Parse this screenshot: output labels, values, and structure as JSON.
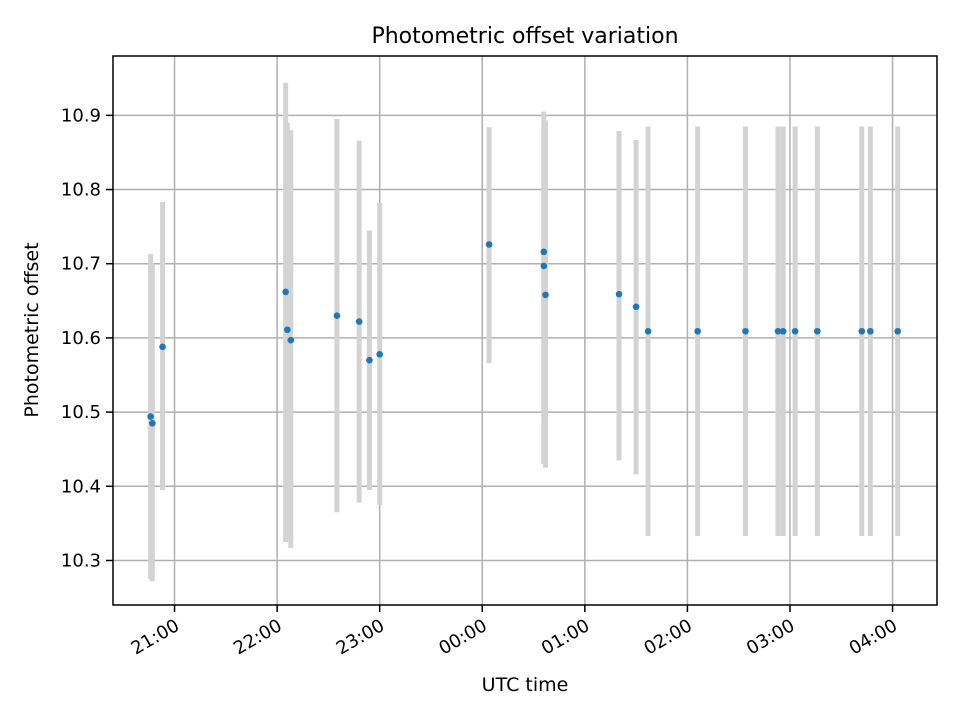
{
  "chart_data": {
    "type": "scatter",
    "title": "Photometric offset variation",
    "xlabel": "UTC time",
    "ylabel": "Photometric offset",
    "x_axis_kind": "time",
    "x_start": "20:24",
    "x_end": "04:26",
    "xlim": [
      "20:24",
      "04:26"
    ],
    "ylim": [
      10.24,
      10.98
    ],
    "x_ticks": [
      "21:00",
      "22:00",
      "23:00",
      "00:00",
      "01:00",
      "02:00",
      "03:00",
      "04:00"
    ],
    "y_ticks": [
      "10.3",
      "10.4",
      "10.5",
      "10.6",
      "10.7",
      "10.8",
      "10.9"
    ],
    "grid": true,
    "marker_color": "#1f77b4",
    "errorbar_color": "#d3d3d3",
    "points": [
      {
        "x": "20:46",
        "y": 10.494,
        "lo": 10.275,
        "hi": 10.713
      },
      {
        "x": "20:47",
        "y": 10.485,
        "lo": 10.272,
        "hi": 10.7
      },
      {
        "x": "20:53",
        "y": 10.588,
        "lo": 10.395,
        "hi": 10.783
      },
      {
        "x": "22:05",
        "y": 10.662,
        "lo": 10.325,
        "hi": 10.944
      },
      {
        "x": "22:06",
        "y": 10.611,
        "lo": 10.33,
        "hi": 10.89
      },
      {
        "x": "22:08",
        "y": 10.597,
        "lo": 10.317,
        "hi": 10.88
      },
      {
        "x": "22:35",
        "y": 10.63,
        "lo": 10.365,
        "hi": 10.895
      },
      {
        "x": "22:48",
        "y": 10.622,
        "lo": 10.378,
        "hi": 10.866
      },
      {
        "x": "22:54",
        "y": 10.57,
        "lo": 10.395,
        "hi": 10.745
      },
      {
        "x": "23:00",
        "y": 10.578,
        "lo": 10.375,
        "hi": 10.782
      },
      {
        "x": "00:04",
        "y": 10.726,
        "lo": 10.566,
        "hi": 10.884
      },
      {
        "x": "00:36",
        "y": 10.716,
        "lo": 10.49,
        "hi": 10.905
      },
      {
        "x": "00:36",
        "y": 10.697,
        "lo": 10.43,
        "hi": 10.89
      },
      {
        "x": "00:37",
        "y": 10.658,
        "lo": 10.425,
        "hi": 10.893
      },
      {
        "x": "01:20",
        "y": 10.659,
        "lo": 10.435,
        "hi": 10.879
      },
      {
        "x": "01:30",
        "y": 10.642,
        "lo": 10.416,
        "hi": 10.867
      },
      {
        "x": "01:37",
        "y": 10.609,
        "lo": 10.333,
        "hi": 10.885
      },
      {
        "x": "02:06",
        "y": 10.609,
        "lo": 10.333,
        "hi": 10.885
      },
      {
        "x": "02:34",
        "y": 10.609,
        "lo": 10.333,
        "hi": 10.885
      },
      {
        "x": "02:53",
        "y": 10.609,
        "lo": 10.333,
        "hi": 10.885
      },
      {
        "x": "02:56",
        "y": 10.609,
        "lo": 10.333,
        "hi": 10.885
      },
      {
        "x": "03:03",
        "y": 10.609,
        "lo": 10.333,
        "hi": 10.885
      },
      {
        "x": "03:16",
        "y": 10.609,
        "lo": 10.333,
        "hi": 10.885
      },
      {
        "x": "03:42",
        "y": 10.609,
        "lo": 10.333,
        "hi": 10.885
      },
      {
        "x": "03:47",
        "y": 10.609,
        "lo": 10.333,
        "hi": 10.885
      },
      {
        "x": "04:03",
        "y": 10.609,
        "lo": 10.333,
        "hi": 10.885
      }
    ]
  }
}
